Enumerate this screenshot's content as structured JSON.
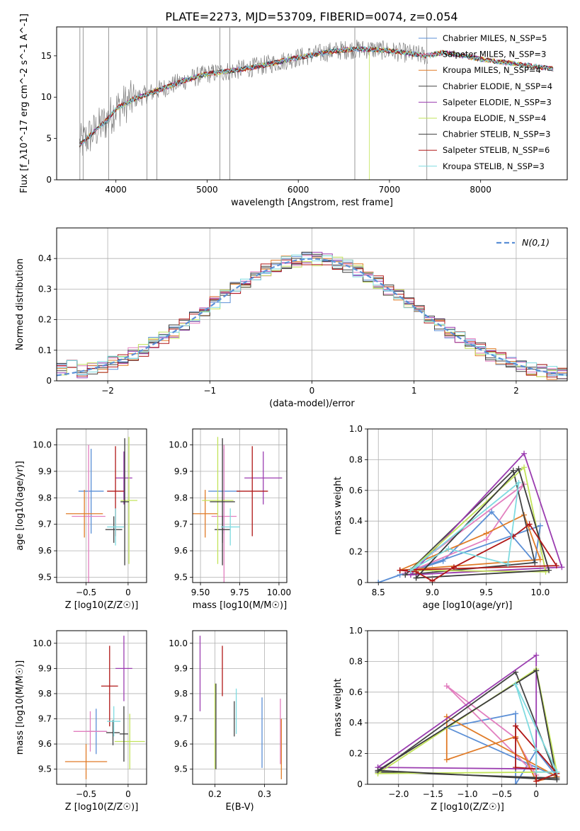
{
  "figure": {
    "title": "PLATE=2273, MJD=53709, FIBERID=0074, z=0.054"
  },
  "chart_data": [
    {
      "id": "spectrum",
      "type": "line",
      "xlabel": "wavelength [Angstrom, rest frame]",
      "ylabel": "Flux [f_λ10^-17 erg cm^-2 s^-1 A^-1]",
      "xlim": [
        3350,
        8950
      ],
      "ylim": [
        0,
        18.5
      ],
      "xticks": [
        4000,
        5000,
        6000,
        7000,
        8000
      ],
      "yticks": [
        0,
        5,
        10,
        15
      ],
      "grid": false,
      "legend_placement": "top-right",
      "series": [
        {
          "name": "Chabrier MILES, N_SSP=5",
          "color": "#5b8fd6"
        },
        {
          "name": "Salpeter MILES, N_SSP=3",
          "color": "#e27fbf"
        },
        {
          "name": "Kroupa MILES, N_SSP=4",
          "color": "#e07b27"
        },
        {
          "name": "Chabrier ELODIE, N_SSP=4",
          "color": "#454545"
        },
        {
          "name": "Salpeter ELODIE, N_SSP=3",
          "color": "#9b3db0"
        },
        {
          "name": "Kroupa ELODIE, N_SSP=4",
          "color": "#c2e35a"
        },
        {
          "name": "Chabrier STELIB, N_SSP=3",
          "color": "#3b3b3b"
        },
        {
          "name": "Salpeter STELIB, N_SSP=6",
          "color": "#b01818"
        },
        {
          "name": "Kroupa STELIB, N_SSP=3",
          "color": "#7fdbe0"
        }
      ],
      "data_color": "#808080",
      "continuum": [
        [
          3600,
          4.2
        ],
        [
          3700,
          5.2
        ],
        [
          3900,
          7.2
        ],
        [
          4000,
          8.6
        ],
        [
          4200,
          9.8
        ],
        [
          4400,
          10.6
        ],
        [
          4600,
          11.4
        ],
        [
          4800,
          12.2
        ],
        [
          5000,
          12.8
        ],
        [
          5200,
          13.1
        ],
        [
          5400,
          13.4
        ],
        [
          5600,
          13.8
        ],
        [
          5800,
          14.3
        ],
        [
          6000,
          14.8
        ],
        [
          6200,
          15.2
        ],
        [
          6400,
          15.6
        ],
        [
          6600,
          15.8
        ],
        [
          6800,
          15.8
        ],
        [
          7000,
          15.6
        ],
        [
          7200,
          15.3
        ],
        [
          7400,
          15.0
        ],
        [
          7600,
          15.4
        ],
        [
          7800,
          15.0
        ],
        [
          8000,
          14.6
        ],
        [
          8200,
          14.3
        ],
        [
          8400,
          14.0
        ],
        [
          8600,
          13.7
        ],
        [
          8800,
          13.4
        ]
      ]
    },
    {
      "id": "residuals",
      "type": "histogram",
      "xlabel": "(data-model)/error",
      "ylabel": "Normed distribution",
      "xlim": [
        -2.5,
        2.5
      ],
      "ylim": [
        0,
        0.5
      ],
      "xticks": [
        -2,
        -1,
        0,
        1,
        2
      ],
      "yticks": [
        0.0,
        0.1,
        0.2,
        0.3,
        0.4
      ],
      "grid": true,
      "legend_placement": "top-right",
      "reference": {
        "name": "N(0,1)",
        "color": "#5b8fd6"
      },
      "bin_width": 0.1
    },
    {
      "id": "age-vs-Z",
      "type": "errorbar",
      "xlabel": "Z [log10(Z/Z☉)]",
      "ylabel": "age  [log10(age/yr)]",
      "xlim": [
        -0.85,
        0.22
      ],
      "ylim": [
        9.48,
        10.06
      ],
      "xticks": [
        -0.5,
        0.0
      ],
      "yticks": [
        9.5,
        9.6,
        9.7,
        9.8,
        9.9,
        10.0
      ],
      "grid": true,
      "points": [
        {
          "x": -0.44,
          "y": 9.825,
          "xerr": 0.15,
          "yerr": 0.16,
          "color": "#5b8fd6"
        },
        {
          "x": -0.47,
          "y": 9.73,
          "xerr": 0.2,
          "yerr": 0.27,
          "color": "#e27fbf"
        },
        {
          "x": -0.52,
          "y": 9.74,
          "xerr": 0.22,
          "yerr": 0.09,
          "color": "#e07b27"
        },
        {
          "x": -0.17,
          "y": 9.68,
          "xerr": 0.1,
          "yerr": 0.05,
          "color": "#454545"
        },
        {
          "x": -0.05,
          "y": 9.875,
          "xerr": 0.1,
          "yerr": 0.1,
          "color": "#9b3db0"
        },
        {
          "x": 0.01,
          "y": 9.79,
          "xerr": 0.1,
          "yerr": 0.24,
          "color": "#c2e35a"
        },
        {
          "x": -0.04,
          "y": 9.785,
          "xerr": 0.05,
          "yerr": 0.24,
          "color": "#3b3b3b"
        },
        {
          "x": -0.15,
          "y": 9.825,
          "xerr": 0.1,
          "yerr": 0.17,
          "color": "#b01818"
        },
        {
          "x": -0.15,
          "y": 9.69,
          "xerr": 0.1,
          "yerr": 0.07,
          "color": "#7fdbe0"
        }
      ]
    },
    {
      "id": "age-vs-mass",
      "type": "errorbar",
      "xlabel": "mass [log10(M/M☉)]",
      "ylabel": "",
      "xlim": [
        9.45,
        10.05
      ],
      "ylim": [
        9.48,
        10.06
      ],
      "xticks": [
        9.5,
        9.75,
        10.0
      ],
      "yticks": [
        9.5,
        9.6,
        9.7,
        9.8,
        9.9,
        10.0
      ],
      "grid": true,
      "points": [
        {
          "x": 9.65,
          "y": 9.825,
          "xerr": 0.1,
          "yerr": 0.16,
          "color": "#5b8fd6"
        },
        {
          "x": 9.65,
          "y": 9.73,
          "xerr": 0.08,
          "yerr": 0.27,
          "color": "#e27fbf"
        },
        {
          "x": 9.53,
          "y": 9.74,
          "xerr": 0.08,
          "yerr": 0.09,
          "color": "#e07b27"
        },
        {
          "x": 9.64,
          "y": 9.68,
          "xerr": 0.05,
          "yerr": 0.05,
          "color": "#454545"
        },
        {
          "x": 9.9,
          "y": 9.875,
          "xerr": 0.12,
          "yerr": 0.1,
          "color": "#9b3db0"
        },
        {
          "x": 9.61,
          "y": 9.79,
          "xerr": 0.1,
          "yerr": 0.24,
          "color": "#c2e35a"
        },
        {
          "x": 9.64,
          "y": 9.785,
          "xerr": 0.08,
          "yerr": 0.24,
          "color": "#3b3b3b"
        },
        {
          "x": 9.83,
          "y": 9.825,
          "xerr": 0.1,
          "yerr": 0.17,
          "color": "#b01818"
        },
        {
          "x": 9.69,
          "y": 9.69,
          "xerr": 0.06,
          "yerr": 0.07,
          "color": "#7fdbe0"
        }
      ]
    },
    {
      "id": "massweight-vs-age",
      "type": "line",
      "xlabel": "age  [log10(age/yr)]",
      "ylabel": "mass weight",
      "xlim": [
        8.4,
        10.25
      ],
      "ylim": [
        0,
        1.0
      ],
      "xticks": [
        8.5,
        9.0,
        9.5,
        10.0
      ],
      "yticks": [
        0.0,
        0.2,
        0.4,
        0.6,
        0.8,
        1.0
      ],
      "grid": true,
      "series": [
        {
          "color": "#5b8fd6",
          "x": [
            8.5,
            8.7,
            9.1,
            9.55,
            9.95,
            10.0,
            8.5
          ],
          "y": [
            0.0,
            0.05,
            0.14,
            0.46,
            0.13,
            0.37,
            0.0
          ]
        },
        {
          "color": "#e27fbf",
          "x": [
            8.75,
            9.5,
            9.85,
            8.75
          ],
          "y": [
            0.06,
            0.28,
            0.64,
            0.06
          ]
        },
        {
          "color": "#e07b27",
          "x": [
            8.7,
            9.5,
            9.85,
            10.0,
            8.7
          ],
          "y": [
            0.08,
            0.32,
            0.44,
            0.15,
            0.08
          ]
        },
        {
          "color": "#454545",
          "x": [
            8.75,
            9.75,
            9.95,
            8.75
          ],
          "y": [
            0.05,
            0.73,
            0.13,
            0.05
          ]
        },
        {
          "color": "#9b3db0",
          "x": [
            8.8,
            9.85,
            10.2,
            8.8
          ],
          "y": [
            0.05,
            0.84,
            0.1,
            0.05
          ]
        },
        {
          "color": "#c2e35a",
          "x": [
            8.8,
            9.85,
            10.05,
            8.8
          ],
          "y": [
            0.08,
            0.75,
            0.07,
            0.08
          ]
        },
        {
          "color": "#3b3b3b",
          "x": [
            8.85,
            9.8,
            10.08,
            8.85
          ],
          "y": [
            0.03,
            0.74,
            0.08,
            0.03
          ]
        },
        {
          "color": "#b01818",
          "x": [
            8.7,
            8.85,
            9.0,
            9.2,
            9.75,
            9.9,
            10.15,
            8.7
          ],
          "y": [
            0.08,
            0.07,
            0.01,
            0.1,
            0.3,
            0.38,
            0.11,
            0.08
          ]
        },
        {
          "color": "#7fdbe0",
          "x": [
            8.8,
            9.15,
            9.7,
            9.8,
            8.8
          ],
          "y": [
            0.08,
            0.22,
            0.12,
            0.65,
            0.08
          ]
        }
      ]
    },
    {
      "id": "mass-vs-Z",
      "type": "errorbar",
      "xlabel": "Z [log10(Z/Z☉)]",
      "ylabel": "mass [log10(M/M☉)]",
      "xlim": [
        -0.85,
        0.22
      ],
      "ylim": [
        9.44,
        10.05
      ],
      "xticks": [
        -0.5,
        0.0
      ],
      "yticks": [
        9.5,
        9.6,
        9.7,
        9.8,
        9.9,
        10.0
      ],
      "grid": true,
      "points": [
        {
          "x": -0.38,
          "y": 9.65,
          "xerr": 0.12,
          "yerr": 0.09,
          "color": "#5b8fd6"
        },
        {
          "x": -0.45,
          "y": 9.65,
          "xerr": 0.2,
          "yerr": 0.08,
          "color": "#e27fbf"
        },
        {
          "x": -0.5,
          "y": 9.53,
          "xerr": 0.25,
          "yerr": 0.07,
          "color": "#e07b27"
        },
        {
          "x": -0.18,
          "y": 9.645,
          "xerr": 0.08,
          "yerr": 0.05,
          "color": "#454545"
        },
        {
          "x": -0.05,
          "y": 9.9,
          "xerr": 0.1,
          "yerr": 0.13,
          "color": "#9b3db0"
        },
        {
          "x": 0.02,
          "y": 9.61,
          "xerr": 0.18,
          "yerr": 0.11,
          "color": "#c2e35a"
        },
        {
          "x": -0.05,
          "y": 9.64,
          "xerr": 0.05,
          "yerr": 0.11,
          "color": "#3b3b3b"
        },
        {
          "x": -0.22,
          "y": 9.83,
          "xerr": 0.1,
          "yerr": 0.16,
          "color": "#b01818"
        },
        {
          "x": -0.17,
          "y": 9.69,
          "xerr": 0.08,
          "yerr": 0.06,
          "color": "#7fdbe0"
        }
      ]
    },
    {
      "id": "mass-vs-ebv",
      "type": "errorbar",
      "xlabel": "E(B-V)",
      "ylabel": "",
      "xlim": [
        0.155,
        0.345
      ],
      "ylim": [
        9.44,
        10.05
      ],
      "xticks": [
        0.2,
        0.3
      ],
      "yticks": [
        9.5,
        9.6,
        9.7,
        9.8,
        9.9,
        10.0
      ],
      "grid": true,
      "points": [
        {
          "x": 0.295,
          "y": 9.645,
          "xerr": 0,
          "yerr": 0.14,
          "color": "#5b8fd6"
        },
        {
          "x": 0.332,
          "y": 9.65,
          "xerr": 0,
          "yerr": 0.13,
          "color": "#e27fbf"
        },
        {
          "x": 0.334,
          "y": 9.58,
          "xerr": 0,
          "yerr": 0.12,
          "color": "#e07b27"
        },
        {
          "x": 0.239,
          "y": 9.7,
          "xerr": 0,
          "yerr": 0.07,
          "color": "#454545"
        },
        {
          "x": 0.17,
          "y": 9.88,
          "xerr": 0,
          "yerr": 0.15,
          "color": "#9b3db0"
        },
        {
          "x": 0.2,
          "y": 9.67,
          "xerr": 0,
          "yerr": 0.17,
          "color": "#c2e35a"
        },
        {
          "x": 0.202,
          "y": 9.67,
          "xerr": 0,
          "yerr": 0.17,
          "color": "#3b3b3b"
        },
        {
          "x": 0.215,
          "y": 9.89,
          "xerr": 0,
          "yerr": 0.1,
          "color": "#b01818"
        },
        {
          "x": 0.243,
          "y": 9.73,
          "xerr": 0,
          "yerr": 0.09,
          "color": "#7fdbe0"
        }
      ]
    },
    {
      "id": "massweight-vs-Z",
      "type": "line",
      "xlabel": "Z [log10(Z/Z☉)]",
      "ylabel": "mass weight",
      "xlim": [
        -2.45,
        0.45
      ],
      "ylim": [
        0,
        1.0
      ],
      "xticks": [
        -2.0,
        -1.5,
        -1.0,
        -0.5,
        0.0
      ],
      "yticks": [
        0.0,
        0.2,
        0.4,
        0.6,
        0.8,
        1.0
      ],
      "grid": true,
      "series": [
        {
          "color": "#5b8fd6",
          "x": [
            -1.3,
            -0.3,
            -0.3,
            0.0,
            0.3,
            -1.3
          ],
          "y": [
            0.37,
            0.46,
            0.0,
            0.22,
            0.05,
            0.37
          ]
        },
        {
          "color": "#e27fbf",
          "x": [
            -1.3,
            -0.3,
            0.0,
            -1.3
          ],
          "y": [
            0.64,
            0.3,
            0.06,
            0.64
          ]
        },
        {
          "color": "#e07b27",
          "x": [
            -1.3,
            -1.3,
            -0.3,
            0.0,
            0.3,
            -1.3
          ],
          "y": [
            0.44,
            0.16,
            0.31,
            0.02,
            0.05,
            0.44
          ]
        },
        {
          "color": "#454545",
          "x": [
            -2.3,
            -0.3,
            0.3,
            -2.3
          ],
          "y": [
            0.08,
            0.73,
            0.04,
            0.08
          ]
        },
        {
          "color": "#9b3db0",
          "x": [
            -2.3,
            0.0,
            0.0,
            -2.3
          ],
          "y": [
            0.11,
            0.84,
            0.1,
            0.11
          ]
        },
        {
          "color": "#c2e35a",
          "x": [
            -2.3,
            0.0,
            0.3,
            -2.3
          ],
          "y": [
            0.07,
            0.75,
            0.08,
            0.07
          ]
        },
        {
          "color": "#3b3b3b",
          "x": [
            -2.3,
            0.0,
            0.3,
            -2.3
          ],
          "y": [
            0.09,
            0.74,
            0.03,
            0.09
          ]
        },
        {
          "color": "#b01818",
          "x": [
            -0.3,
            -0.3,
            -0.3,
            0.0,
            0.0,
            0.3,
            -0.3
          ],
          "y": [
            0.38,
            0.3,
            0.11,
            0.1,
            0.02,
            0.07,
            0.38
          ]
        },
        {
          "color": "#7fdbe0",
          "x": [
            -0.3,
            0.0,
            0.0,
            0.3,
            -0.3
          ],
          "y": [
            0.65,
            0.22,
            0.08,
            0.08,
            0.65
          ]
        }
      ]
    }
  ]
}
